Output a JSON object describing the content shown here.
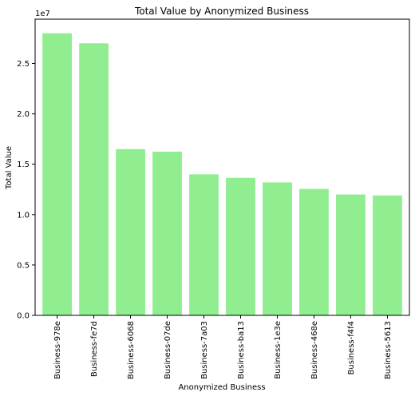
{
  "chart_data": {
    "type": "bar",
    "title": "Total Value by Anonymized Business",
    "xlabel": "Anonymized Business",
    "ylabel": "Total Value",
    "y_offset_label": "1e7",
    "y_tick_labels": [
      "0.0",
      "0.5",
      "1.0",
      "1.5",
      "2.0",
      "2.5"
    ],
    "ylim": [
      0,
      2.94
    ],
    "grid": false,
    "bar_color": "#90ee90",
    "categories": [
      "Business-978e",
      "Business-fe7d",
      "Business-6068",
      "Business-07de",
      "Business-7a03",
      "Business-ba13",
      "Business-1e3e",
      "Business-468e",
      "Business-f4f4",
      "Business-5613"
    ],
    "values": [
      2.8,
      2.7,
      1.65,
      1.625,
      1.4,
      1.365,
      1.32,
      1.255,
      1.2,
      1.19
    ]
  }
}
